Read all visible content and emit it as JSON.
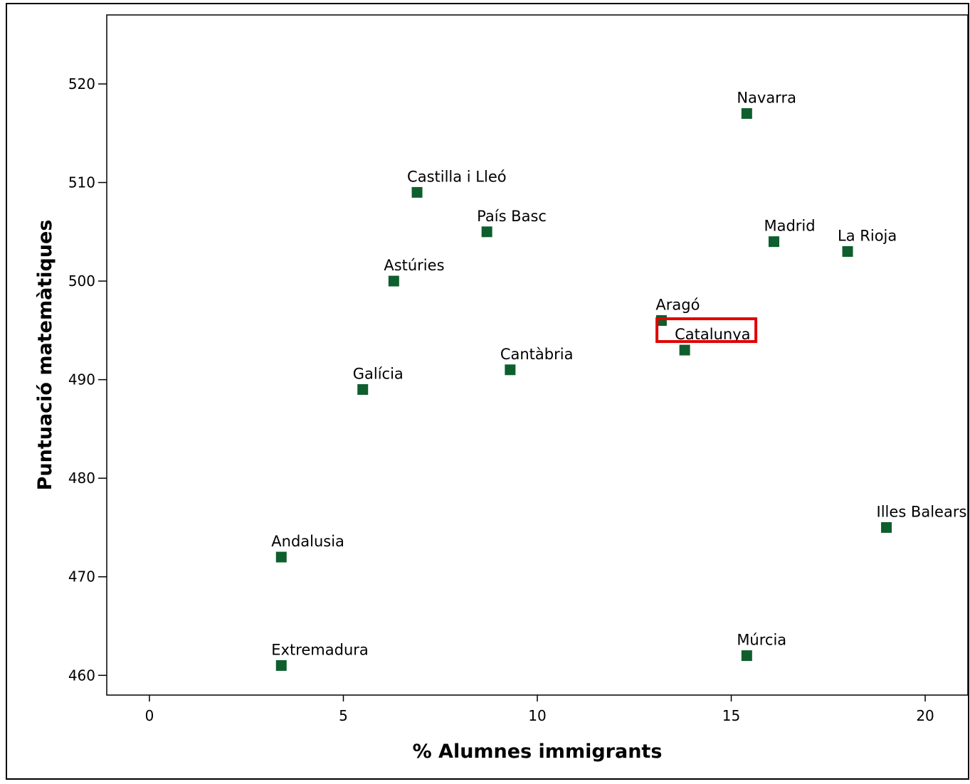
{
  "colors": {
    "marker": "#0e5e2e",
    "highlight": "#e00000"
  },
  "chart_data": {
    "type": "scatter",
    "title": "",
    "xlabel": "% Alumnes immigrants",
    "ylabel": "Puntuació matemàtiques",
    "xlim": [
      -1.1,
      21.1
    ],
    "ylim": [
      458,
      527
    ],
    "xticks": [
      0,
      5,
      10,
      15,
      20
    ],
    "yticks": [
      460,
      470,
      480,
      490,
      500,
      510,
      520
    ],
    "grid": false,
    "legend": "none",
    "highlighted_point": "Catalunya",
    "points": [
      {
        "label": "Navarra",
        "x": 15.4,
        "y": 517
      },
      {
        "label": "Castilla i Lleó",
        "x": 6.9,
        "y": 509
      },
      {
        "label": "País Basc",
        "x": 8.7,
        "y": 505
      },
      {
        "label": "Madrid",
        "x": 16.1,
        "y": 504
      },
      {
        "label": "La Rioja",
        "x": 18.0,
        "y": 503
      },
      {
        "label": "Astúries",
        "x": 6.3,
        "y": 500
      },
      {
        "label": "Aragó",
        "x": 13.2,
        "y": 496
      },
      {
        "label": "Catalunya",
        "x": 13.8,
        "y": 493
      },
      {
        "label": "Cantàbria",
        "x": 9.3,
        "y": 491
      },
      {
        "label": "Galícia",
        "x": 5.5,
        "y": 489
      },
      {
        "label": "Illes Balears",
        "x": 19.0,
        "y": 475
      },
      {
        "label": "Andalusia",
        "x": 3.4,
        "y": 472
      },
      {
        "label": "Múrcia",
        "x": 15.4,
        "y": 462
      },
      {
        "label": "Extremadura",
        "x": 3.4,
        "y": 461
      }
    ]
  }
}
